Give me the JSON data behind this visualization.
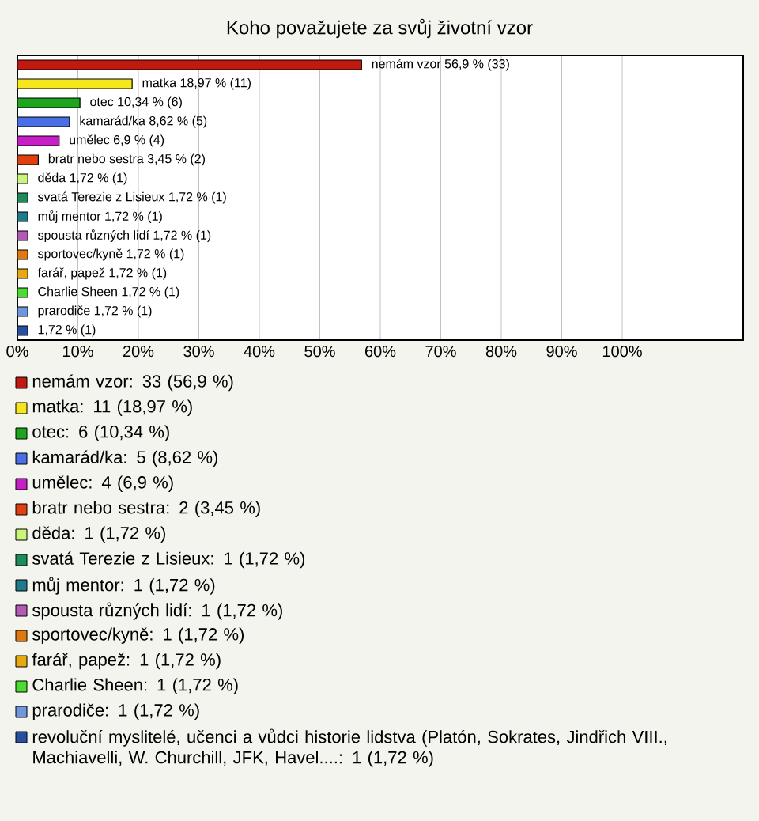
{
  "chart_data": {
    "type": "bar",
    "orientation": "horizontal",
    "title": "Koho považujete za svůj životní vzor",
    "categories": [
      null,
      null,
      null,
      null,
      null,
      null,
      null,
      null,
      null,
      null,
      null,
      null,
      null,
      null,
      null
    ],
    "series": [
      {
        "name": "nemám vzor: 33 (56,9 %)",
        "color": "#c01a10",
        "values": [
          56.9,
          null,
          null,
          null,
          null,
          null,
          null,
          null,
          null,
          null,
          null,
          null,
          null,
          null,
          null
        ],
        "value_labels": [
          "nemám vzor 56,9 % (33)",
          null,
          null,
          null,
          null,
          null,
          null,
          null,
          null,
          null,
          null,
          null,
          null,
          null,
          null
        ]
      },
      {
        "name": "matka: 11 (18,97 %)",
        "color": "#f5e61e",
        "values": [
          null,
          18.97,
          null,
          null,
          null,
          null,
          null,
          null,
          null,
          null,
          null,
          null,
          null,
          null,
          null
        ],
        "value_labels": [
          null,
          "matka 18,97 % (11)",
          null,
          null,
          null,
          null,
          null,
          null,
          null,
          null,
          null,
          null,
          null,
          null,
          null
        ]
      },
      {
        "name": "otec: 6 (10,34 %)",
        "color": "#1ea51e",
        "values": [
          null,
          null,
          10.34,
          null,
          null,
          null,
          null,
          null,
          null,
          null,
          null,
          null,
          null,
          null,
          null
        ],
        "value_labels": [
          null,
          null,
          "otec 10,34 % (6)",
          null,
          null,
          null,
          null,
          null,
          null,
          null,
          null,
          null,
          null,
          null,
          null
        ]
      },
      {
        "name": "kamarád/ka: 5 (8,62 %)",
        "color": "#4a6ee6",
        "values": [
          null,
          null,
          null,
          8.62,
          null,
          null,
          null,
          null,
          null,
          null,
          null,
          null,
          null,
          null,
          null
        ],
        "value_labels": [
          null,
          null,
          null,
          "kamarád/ka 8,62 % (5)",
          null,
          null,
          null,
          null,
          null,
          null,
          null,
          null,
          null,
          null,
          null
        ]
      },
      {
        "name": "umělec: 4 (6,9 %)",
        "color": "#c81ec8",
        "values": [
          null,
          null,
          null,
          null,
          6.9,
          null,
          null,
          null,
          null,
          null,
          null,
          null,
          null,
          null,
          null
        ],
        "value_labels": [
          null,
          null,
          null,
          null,
          "umělec 6,9 % (4)",
          null,
          null,
          null,
          null,
          null,
          null,
          null,
          null,
          null,
          null
        ]
      },
      {
        "name": "bratr nebo sestra: 2 (3,45 %)",
        "color": "#e0400f",
        "values": [
          null,
          null,
          null,
          null,
          null,
          3.45,
          null,
          null,
          null,
          null,
          null,
          null,
          null,
          null,
          null
        ],
        "value_labels": [
          null,
          null,
          null,
          null,
          null,
          "bratr nebo sestra 3,45 % (2)",
          null,
          null,
          null,
          null,
          null,
          null,
          null,
          null,
          null
        ]
      },
      {
        "name": "děda: 1 (1,72 %)",
        "color": "#c8f57a",
        "values": [
          null,
          null,
          null,
          null,
          null,
          null,
          1.72,
          null,
          null,
          null,
          null,
          null,
          null,
          null,
          null
        ],
        "value_labels": [
          null,
          null,
          null,
          null,
          null,
          null,
          "děda 1,72 % (1)",
          null,
          null,
          null,
          null,
          null,
          null,
          null,
          null
        ]
      },
      {
        "name": "svatá Terezie z Lisieux: 1 (1,72 %)",
        "color": "#1e8c5a",
        "values": [
          null,
          null,
          null,
          null,
          null,
          null,
          null,
          1.72,
          null,
          null,
          null,
          null,
          null,
          null,
          null
        ],
        "value_labels": [
          null,
          null,
          null,
          null,
          null,
          null,
          null,
          "svatá Terezie z Lisieux 1,72 % (1)",
          null,
          null,
          null,
          null,
          null,
          null,
          null
        ]
      },
      {
        "name": "můj mentor: 1 (1,72 %)",
        "color": "#1e7a8c",
        "values": [
          null,
          null,
          null,
          null,
          null,
          null,
          null,
          null,
          1.72,
          null,
          null,
          null,
          null,
          null,
          null
        ],
        "value_labels": [
          null,
          null,
          null,
          null,
          null,
          null,
          null,
          null,
          "můj mentor 1,72 % (1)",
          null,
          null,
          null,
          null,
          null,
          null
        ]
      },
      {
        "name": "spousta různých lidí: 1 (1,72 %)",
        "color": "#b45ab4",
        "values": [
          null,
          null,
          null,
          null,
          null,
          null,
          null,
          null,
          null,
          1.72,
          null,
          null,
          null,
          null,
          null
        ],
        "value_labels": [
          null,
          null,
          null,
          null,
          null,
          null,
          null,
          null,
          null,
          "spousta různých lidí 1,72 % (1)",
          null,
          null,
          null,
          null,
          null
        ]
      },
      {
        "name": "sportovec/kyně: 1 (1,72 %)",
        "color": "#e0780f",
        "values": [
          null,
          null,
          null,
          null,
          null,
          null,
          null,
          null,
          null,
          null,
          1.72,
          null,
          null,
          null,
          null
        ],
        "value_labels": [
          null,
          null,
          null,
          null,
          null,
          null,
          null,
          null,
          null,
          null,
          "sportovec/kyně 1,72 % (1)",
          null,
          null,
          null,
          null
        ]
      },
      {
        "name": "farář, papež: 1 (1,72 %)",
        "color": "#e6aa0f",
        "values": [
          null,
          null,
          null,
          null,
          null,
          null,
          null,
          null,
          null,
          null,
          null,
          1.72,
          null,
          null,
          null
        ],
        "value_labels": [
          null,
          null,
          null,
          null,
          null,
          null,
          null,
          null,
          null,
          null,
          null,
          "farář, papež 1,72 % (1)",
          null,
          null,
          null
        ]
      },
      {
        "name": "Charlie Sheen: 1 (1,72 %)",
        "color": "#4bdc32",
        "values": [
          null,
          null,
          null,
          null,
          null,
          null,
          null,
          null,
          null,
          null,
          null,
          null,
          1.72,
          null,
          null
        ],
        "value_labels": [
          null,
          null,
          null,
          null,
          null,
          null,
          null,
          null,
          null,
          null,
          null,
          null,
          "Charlie Sheen 1,72 % (1)",
          null,
          null
        ]
      },
      {
        "name": "prarodiče: 1 (1,72 %)",
        "color": "#6e96dc",
        "values": [
          null,
          null,
          null,
          null,
          null,
          null,
          null,
          null,
          null,
          null,
          null,
          null,
          null,
          1.72,
          null
        ],
        "value_labels": [
          null,
          null,
          null,
          null,
          null,
          null,
          null,
          null,
          null,
          null,
          null,
          null,
          null,
          "prarodiče 1,72 % (1)",
          null
        ]
      },
      {
        "name": "revoluční myslitelé, učenci a vůdci historie lidstva (Platón, Sokrates, Jindřich VIII., Machiavelli, W. Churchill, JFK, Havel....: 1 (1,72 %)",
        "color": "#2850a0",
        "values": [
          null,
          null,
          null,
          null,
          null,
          null,
          null,
          null,
          null,
          null,
          null,
          null,
          null,
          null,
          1.72
        ],
        "value_labels": [
          null,
          null,
          null,
          null,
          null,
          null,
          null,
          null,
          null,
          null,
          null,
          null,
          null,
          null,
          "1,72 % (1)"
        ]
      }
    ],
    "xlim": [
      0,
      120
    ],
    "xticks": [
      {
        "value": 0,
        "label": "0%"
      },
      {
        "value": 10,
        "label": "10%"
      },
      {
        "value": 20,
        "label": "20%"
      },
      {
        "value": 30,
        "label": "30%"
      },
      {
        "value": 40,
        "label": "40%"
      },
      {
        "value": 50,
        "label": "50%"
      },
      {
        "value": 60,
        "label": "60%"
      },
      {
        "value": 70,
        "label": "70%"
      },
      {
        "value": 80,
        "label": "80%"
      },
      {
        "value": 90,
        "label": "90%"
      },
      {
        "value": 100,
        "label": "100%"
      }
    ],
    "grid": "x",
    "legend": "bottom"
  }
}
